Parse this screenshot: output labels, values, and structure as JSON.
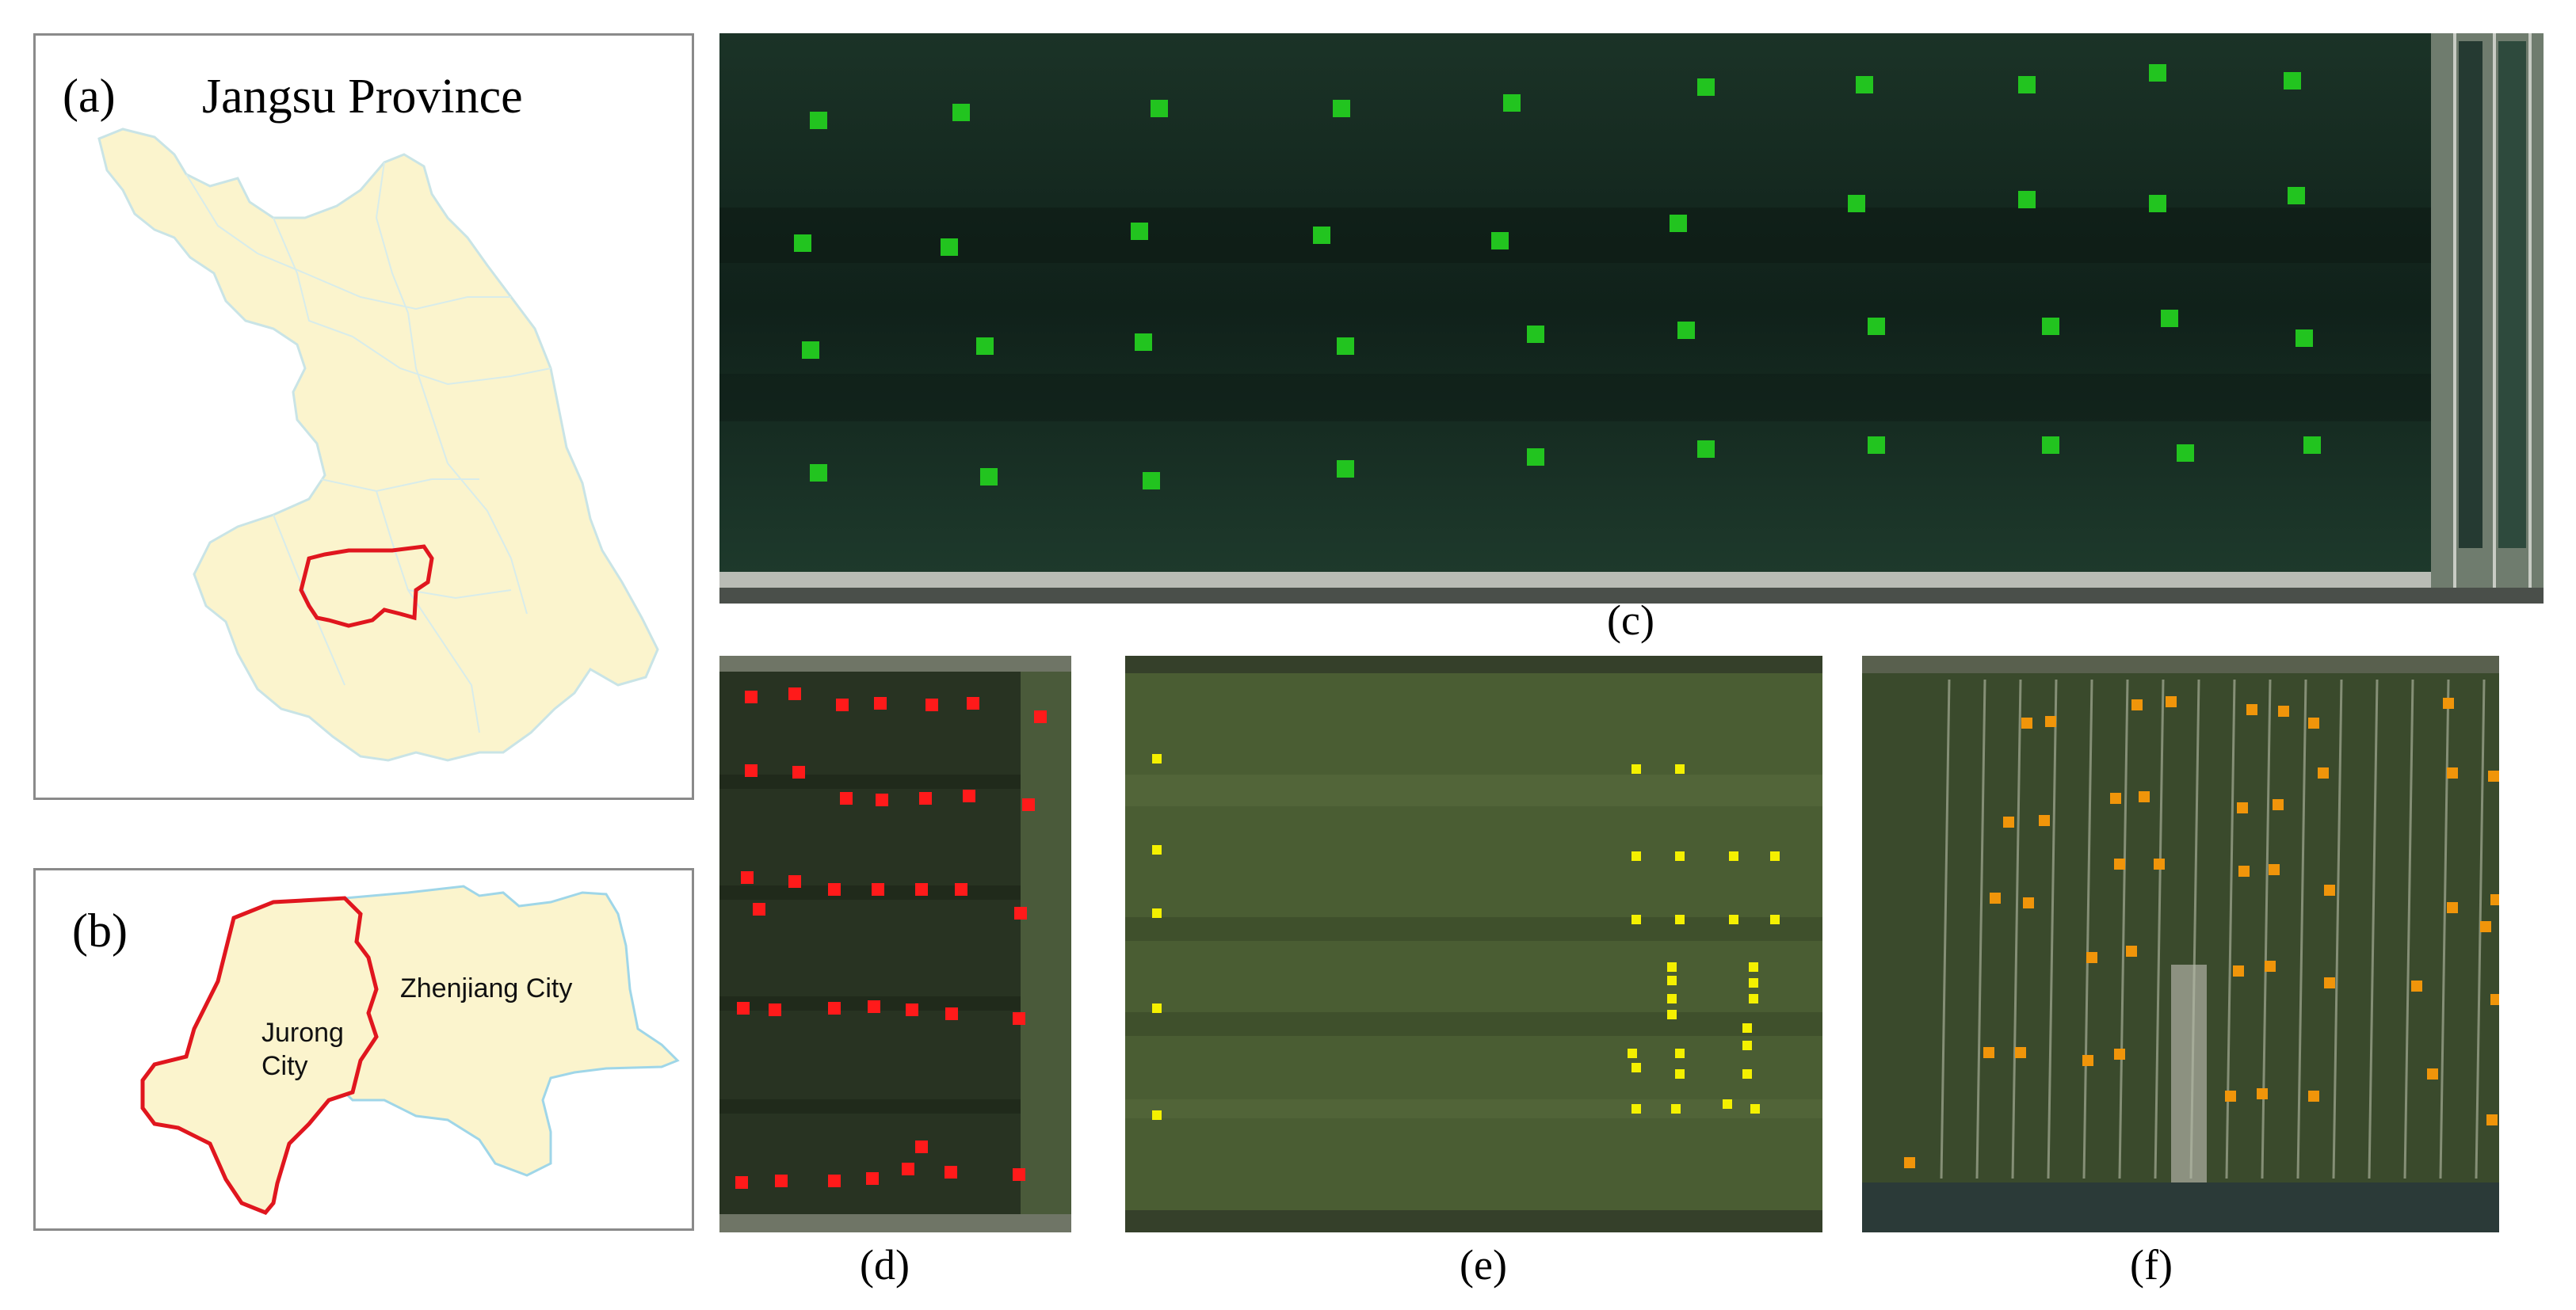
{
  "panel_a": {
    "label": "(a)",
    "title": "Jangsu Province"
  },
  "panel_b": {
    "label": "(b)",
    "city_left": [
      "Jurong",
      "City"
    ],
    "city_right": "Zhenjiang City"
  },
  "panel_c": {
    "label": "(c)",
    "marker_color": "#22c41f",
    "marker_count": 40
  },
  "panel_d": {
    "label": "(d)",
    "marker_color": "#ff1a1a",
    "marker_count": 37
  },
  "panel_e": {
    "label": "(e)",
    "marker_color": "#f4f000",
    "marker_count": 33
  },
  "panel_f": {
    "label": "(f)",
    "marker_color": "#f0950a",
    "marker_count": 44
  },
  "colors": {
    "province_fill": "#fbf4cd",
    "boundary": "#e0161e",
    "water": "#9fd6e8",
    "field_dark": "#16261c"
  }
}
